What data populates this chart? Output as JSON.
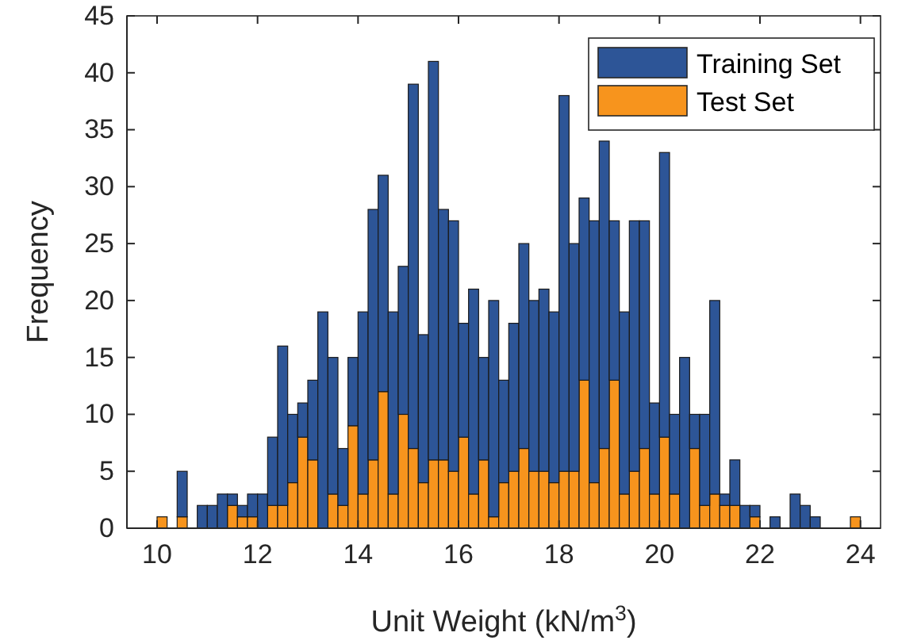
{
  "chart_data": {
    "type": "bar",
    "xlabel": "Unit Weight (kN/m$^{3}$)",
    "ylabel": "Frequency",
    "x": [
      10.1,
      10.3,
      10.5,
      10.7,
      10.9,
      11.1,
      11.3,
      11.5,
      11.7,
      11.9,
      12.1,
      12.3,
      12.5,
      12.7,
      12.9,
      13.1,
      13.3,
      13.5,
      13.7,
      13.9,
      14.1,
      14.3,
      14.5,
      14.7,
      14.9,
      15.1,
      15.3,
      15.5,
      15.7,
      15.9,
      16.1,
      16.3,
      16.5,
      16.7,
      16.9,
      17.1,
      17.3,
      17.5,
      17.7,
      17.9,
      18.1,
      18.3,
      18.5,
      18.7,
      18.9,
      19.1,
      19.3,
      19.5,
      19.7,
      19.9,
      20.1,
      20.3,
      20.5,
      20.7,
      20.9,
      21.1,
      21.3,
      21.5,
      21.7,
      21.9,
      22.1,
      22.3,
      22.5,
      22.7,
      22.9,
      23.1,
      23.3,
      23.5,
      23.7,
      23.9
    ],
    "series": [
      {
        "name": "Test Set",
        "color": "#f7941d",
        "values": [
          1,
          0,
          1,
          0,
          0,
          0,
          0,
          2,
          1,
          1,
          0,
          2,
          2,
          4,
          8,
          6,
          0,
          3,
          2,
          9,
          3,
          6,
          12,
          3,
          10,
          7,
          4,
          6,
          6,
          5,
          8,
          3,
          6,
          1,
          4,
          5,
          7,
          5,
          5,
          4,
          5,
          5,
          13,
          4,
          7,
          13,
          3,
          5,
          7,
          3,
          8,
          3,
          0,
          7,
          2,
          3,
          2,
          2,
          0,
          1,
          0,
          0,
          0,
          0,
          0,
          0,
          0,
          0,
          0,
          1
        ]
      },
      {
        "name": "Training Set",
        "color": "#2d5597",
        "values": [
          0,
          0,
          4,
          0,
          2,
          2,
          3,
          1,
          1,
          2,
          3,
          6,
          14,
          6,
          3,
          7,
          19,
          12,
          5,
          6,
          16,
          22,
          19,
          16,
          13,
          32,
          13,
          35,
          22,
          22,
          10,
          18,
          9,
          19,
          9,
          13,
          18,
          15,
          16,
          15,
          33,
          20,
          16,
          23,
          27,
          14,
          16,
          22,
          20,
          8,
          25,
          7,
          15,
          3,
          8,
          17,
          1,
          4,
          2,
          1,
          0,
          1,
          0,
          3,
          2,
          1,
          0,
          0,
          0,
          0
        ]
      }
    ],
    "stacked": true,
    "xlim": [
      9.4,
      24.4
    ],
    "ylim": [
      0,
      45
    ],
    "xticks": [
      10,
      12,
      14,
      16,
      18,
      20,
      22,
      24
    ],
    "yticks": [
      0,
      5,
      10,
      15,
      20,
      25,
      30,
      35,
      40,
      45
    ],
    "grid": false,
    "legend": "top right"
  }
}
